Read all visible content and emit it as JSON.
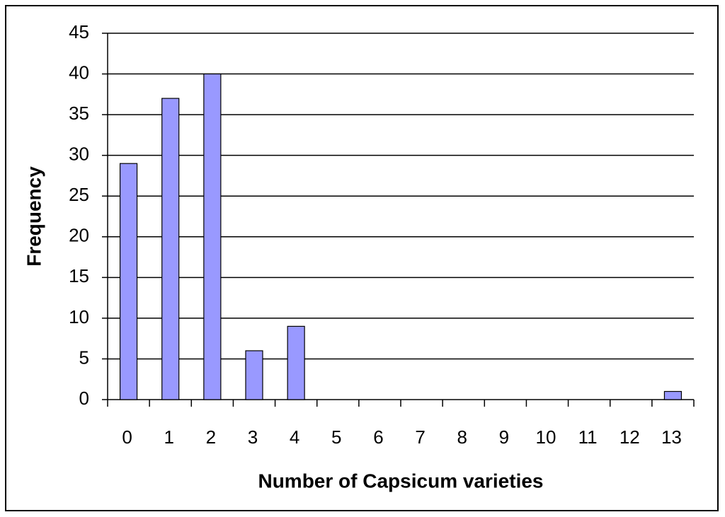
{
  "chart_data": {
    "type": "bar",
    "x_label": "Number of Capsicum varieties",
    "y_label": "Frequency",
    "categories": [
      "0",
      "1",
      "2",
      "3",
      "4",
      "5",
      "6",
      "7",
      "8",
      "9",
      "10",
      "11",
      "12",
      "13"
    ],
    "values": [
      29,
      37,
      40,
      6,
      9,
      0,
      0,
      0,
      0,
      0,
      0,
      0,
      0,
      1
    ],
    "color": "#9999ff",
    "ylim": [
      0,
      45
    ],
    "yticks": [
      0,
      5,
      10,
      15,
      20,
      25,
      30,
      35,
      40,
      45
    ],
    "grid": true
  }
}
